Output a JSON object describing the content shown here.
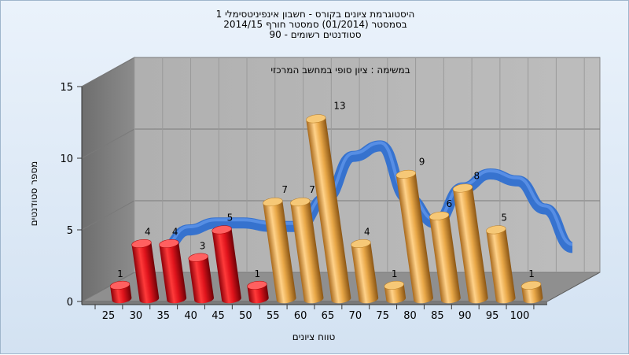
{
  "chart_data": {
    "type": "bar",
    "title_lines": [
      "היסטוגרמת ציונים בקורס - חשבון אינפיניטסימלי 1",
      "בסמסטר  (01/2014)  סמסטר חורף 2014/15",
      "סטודנטים רשומים - 90"
    ],
    "annotation": "במשימה : ציון סופי במחשב המרכזי",
    "xlabel": "טווח ציונים",
    "ylabel": "מספר סטודנטים",
    "ylim": [
      0,
      15
    ],
    "yticks": [
      "0",
      "5",
      "10",
      "15"
    ],
    "x_tick_labels": [
      "25",
      "30",
      "35",
      "40",
      "45",
      "50",
      "55",
      "60",
      "65",
      "70",
      "75",
      "80",
      "85",
      "90",
      "95",
      "100"
    ],
    "categories": [
      "25",
      "30",
      "35",
      "40",
      "45",
      "50",
      "55",
      "60",
      "65",
      "70",
      "75",
      "80",
      "85",
      "90",
      "95",
      "100"
    ],
    "values": [
      1,
      4,
      4,
      3,
      5,
      1,
      7,
      7,
      13,
      4,
      1,
      9,
      6,
      8,
      5,
      1
    ],
    "value_labels": [
      "1",
      "4",
      "4",
      "3",
      "5",
      "1",
      "7",
      "7",
      "13",
      "4",
      "1",
      "9",
      "6",
      "8",
      "5",
      "1"
    ],
    "failing_color": "#d4101a",
    "passing_color": "#e3a443",
    "curve_color": "#2f6fd0",
    "grid": true,
    "legend": "none"
  }
}
